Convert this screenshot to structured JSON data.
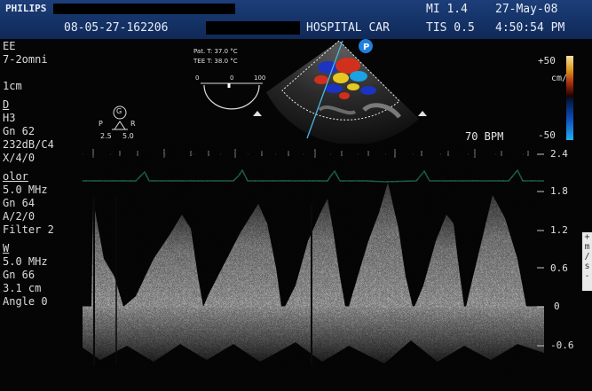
{
  "header": {
    "brand": "PHILIPS",
    "study_id": "08-05-27-162206",
    "hospital": "HOSPITAL CAR",
    "mi": "MI 1.4",
    "tis": "TIS 0.5",
    "date": "27-May-08",
    "time": "4:50:54 PM"
  },
  "left_panel": {
    "lines_top": [
      "EE",
      "7-2omni",
      "",
      "1cm"
    ],
    "section_2d": "D",
    "lines_2d": [
      "H3",
      "Gn 62",
      "232dB/C4",
      "X/4/0"
    ],
    "section_color": "olor",
    "lines_color": [
      "5.0 MHz",
      "Gn 64",
      "A/2/0",
      "Filter 2"
    ],
    "section_pw": "W",
    "lines_pw": [
      "5.0 MHz",
      "Gn 66",
      "3.1 cm",
      "Angle 0"
    ]
  },
  "temps": {
    "patient": "Pat. T: 37.0 °C",
    "tee": "TEE T: 38.0 °C"
  },
  "angle_gauge": {
    "min_label": "0",
    "current_label": "0",
    "max_label": "100",
    "value": 0
  },
  "probe_orientation": {
    "p_label": "P",
    "g_label": "G",
    "r_label": "R",
    "left_value": "2.5",
    "right_value": "5.0"
  },
  "color_scale": {
    "top": "+50",
    "bottom": "-50",
    "unit": "cm/s",
    "colors": {
      "red": "#d9301a",
      "yellow": "#f0d020",
      "cyan": "#1aa7ee",
      "blue": "#1a34c8"
    }
  },
  "heart_rate": "70 BPM",
  "velocity_scale": {
    "unit": "m/s",
    "labels": [
      "2.4",
      "1.8",
      "1.2",
      "0.6",
      "0",
      "-0.6"
    ]
  },
  "sidetab_text": "+ m / s -",
  "colors": {
    "header_blue": "#1c3e79",
    "ecg_green": "#2e9a72"
  }
}
